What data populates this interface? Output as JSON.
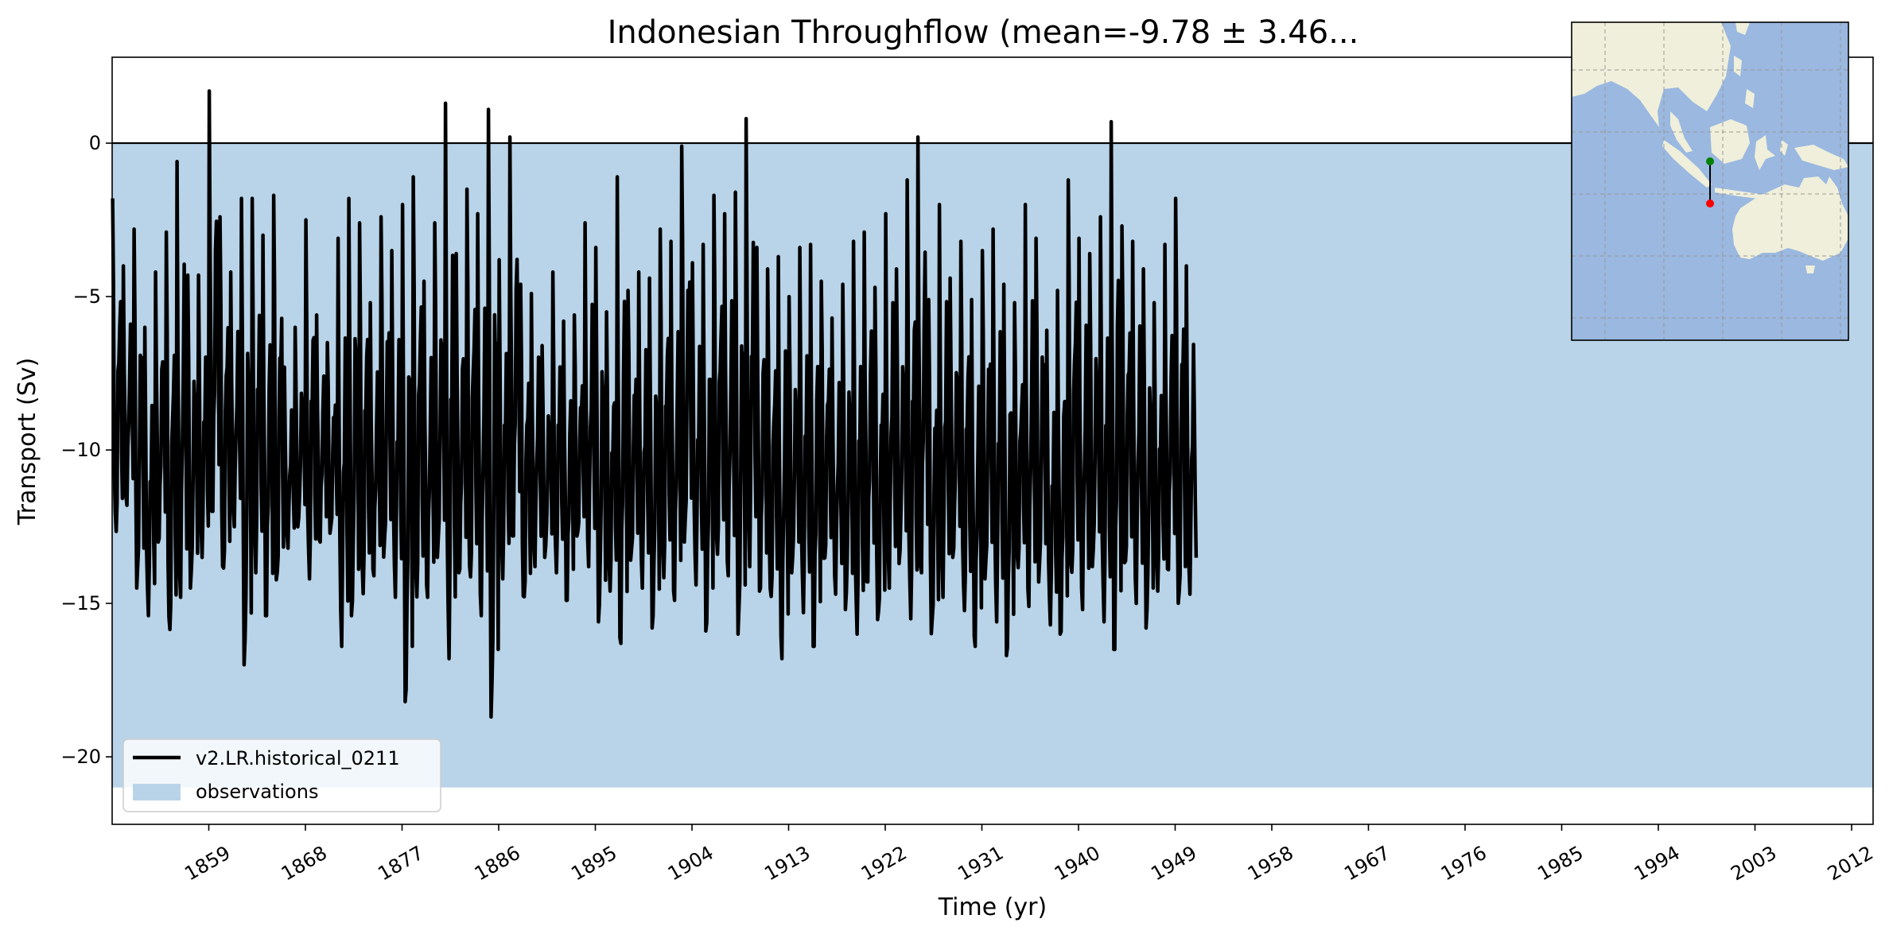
{
  "chart_data": {
    "type": "line",
    "title": "Indonesian Throughflow (mean=-9.78 ± 3.46...",
    "xlabel": "Time (yr)",
    "ylabel": "Transport (Sv)",
    "xlim": [
      1850,
      2014
    ],
    "ylim": [
      -22.2,
      2.8
    ],
    "x_ticks": [
      "1859",
      "1868",
      "1877",
      "1886",
      "1895",
      "1904",
      "1913",
      "1922",
      "1931",
      "1940",
      "1949",
      "1958",
      "1967",
      "1976",
      "1985",
      "1994",
      "2003",
      "2012"
    ],
    "y_ticks": [
      "0",
      "−5",
      "−10",
      "−15",
      "−20"
    ],
    "zero_line": 0,
    "observations_band": {
      "label": "observations",
      "min": -21,
      "max": 0,
      "color": "#b9d4e8"
    },
    "legend": {
      "position": "lower-left",
      "entries": [
        "v2.LR.historical_0211",
        "observations"
      ]
    },
    "grid": false,
    "series": [
      {
        "name": "v2.LR.historical_0211",
        "color": "#000000",
        "seasonal_cycle_approx": [
          -4.5,
          -7.5,
          -11.0,
          -13.2,
          -13.5,
          -12.0,
          -10.0,
          -8.5,
          -7.5,
          -8.2,
          -10.5,
          -12.5
        ],
        "annual_maxima": [
          -1.8,
          -4.0,
          -2.8,
          -6.0,
          -4.2,
          -2.9,
          -0.6,
          -4.3,
          -4.3,
          1.7,
          -2.4,
          -4.2,
          -1.8,
          -1.8,
          -3.0,
          -1.7,
          -7.3,
          -6.0,
          -2.5,
          -5.6,
          -6.5,
          -3.1,
          -1.8,
          -2.6,
          -5.2,
          -2.4,
          -3.5,
          -2.0,
          -1.1,
          -4.5,
          -2.6,
          1.3,
          -3.6,
          -1.5,
          -2.3,
          1.1,
          -3.8,
          0.2,
          -4.6,
          -4.9,
          -6.6,
          -4.2,
          -5.8,
          -5.6,
          -2.6,
          -3.4,
          -5.5,
          -1.1,
          -4.8,
          -4.2,
          -4.4,
          -2.8,
          -3.2,
          -0.1,
          -3.9,
          -3.3,
          -1.7,
          -2.3,
          -1.6,
          0.8,
          -3.4,
          -4.1,
          -3.7,
          -5.0,
          -3.4,
          -3.3,
          -4.5,
          -5.7,
          -4.6,
          -3.2,
          -2.9,
          -4.7,
          -2.3,
          -4.1,
          -1.2,
          0.2,
          -5.1,
          -2.0,
          -4.4,
          -3.2,
          -5.1,
          -3.5,
          -2.8,
          -4.6,
          -5.2,
          -2.0,
          -3.1,
          -6.1,
          -4.8,
          -1.2,
          -3.1,
          -3.6,
          -2.4,
          0.7,
          -2.7,
          -3.2,
          -4.1,
          -5.2,
          -3.3,
          -1.8,
          -4.0
        ],
        "annual_minima": [
          -12.8,
          -11.8,
          -14.5,
          -15.4,
          -13.0,
          -16.2,
          -14.8,
          -14.5,
          -13.5,
          -12.0,
          -14.3,
          -12.5,
          -17.0,
          -14.0,
          -15.4,
          -14.6,
          -13.2,
          -12.5,
          -14.2,
          -13.0,
          -12.8,
          -16.4,
          -15.4,
          -14.7,
          -14.1,
          -13.5,
          -14.8,
          -18.2,
          -15.0,
          -14.8,
          -13.5,
          -16.8,
          -14.0,
          -14.5,
          -15.4,
          -18.7,
          -14.2,
          -12.8,
          -15.2,
          -13.8,
          -13.5,
          -14.0,
          -14.9,
          -13.0,
          -13.8,
          -15.6,
          -14.6,
          -16.3,
          -13.7,
          -14.5,
          -15.8,
          -14.2,
          -14.9,
          -13.0,
          -14.4,
          -15.9,
          -13.6,
          -14.1,
          -16.0,
          -13.8,
          -14.6,
          -15.1,
          -16.8,
          -14.0,
          -15.3,
          -16.4,
          -13.9,
          -14.7,
          -15.2,
          -16.0,
          -14.3,
          -15.8,
          -14.5,
          -13.7,
          -15.5,
          -14.0,
          -16.1,
          -14.8,
          -13.5,
          -15.3,
          -16.4,
          -14.2,
          -15.6,
          -16.7,
          -14.0,
          -15.1,
          -14.3,
          -15.7,
          -16.0,
          -14.4,
          -15.2,
          -13.8,
          -15.6,
          -16.5,
          -14.1,
          -15.0,
          -15.8,
          -14.6,
          -13.9,
          -15.3,
          -14.7
        ]
      }
    ],
    "inset_map": {
      "description_colors": {
        "ocean": "#9ab8e0",
        "land": "#efefdb"
      },
      "section_markers": [
        {
          "role": "start",
          "color": "#008000"
        },
        {
          "role": "end",
          "color": "#ff0000"
        }
      ]
    }
  }
}
